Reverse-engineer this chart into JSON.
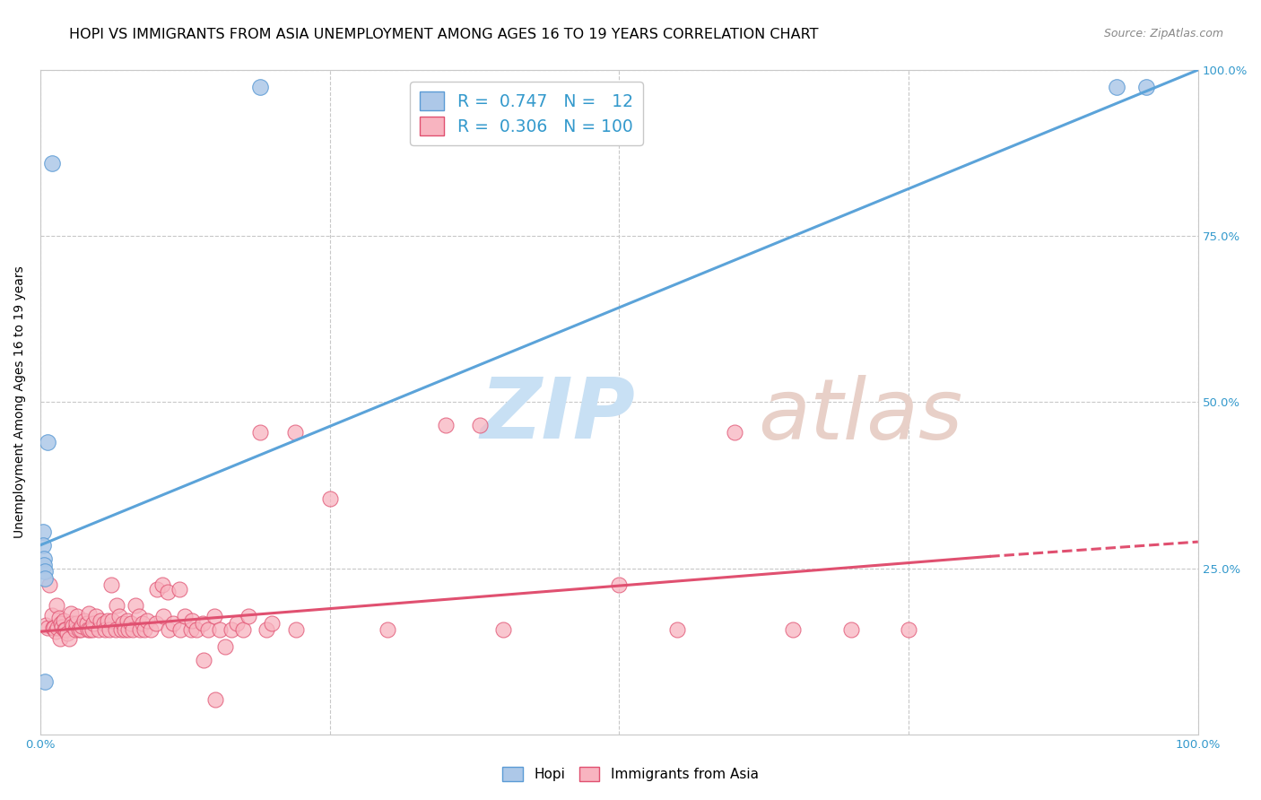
{
  "title": "HOPI VS IMMIGRANTS FROM ASIA UNEMPLOYMENT AMONG AGES 16 TO 19 YEARS CORRELATION CHART",
  "source": "Source: ZipAtlas.com",
  "ylabel": "Unemployment Among Ages 16 to 19 years",
  "xlim": [
    0,
    1
  ],
  "ylim": [
    0,
    1
  ],
  "hopi_color": "#adc8e8",
  "hopi_edge_color": "#5b9bd5",
  "asia_color": "#f8b4c0",
  "asia_edge_color": "#e05070",
  "blue_line_color": "#5ba3d9",
  "pink_line_color": "#e05070",
  "watermark_zip_color": "#c8e0f4",
  "watermark_atlas_color": "#e8d0c8",
  "legend_R_hopi": "0.747",
  "legend_N_hopi": "12",
  "legend_R_asia": "0.306",
  "legend_N_asia": "100",
  "hopi_points": [
    [
      0.002,
      0.305
    ],
    [
      0.002,
      0.285
    ],
    [
      0.003,
      0.265
    ],
    [
      0.003,
      0.255
    ],
    [
      0.004,
      0.245
    ],
    [
      0.004,
      0.235
    ],
    [
      0.004,
      0.08
    ],
    [
      0.006,
      0.44
    ],
    [
      0.01,
      0.86
    ],
    [
      0.19,
      0.975
    ],
    [
      0.93,
      0.975
    ],
    [
      0.955,
      0.975
    ]
  ],
  "asia_points": [
    [
      0.005,
      0.165
    ],
    [
      0.006,
      0.16
    ],
    [
      0.008,
      0.225
    ],
    [
      0.01,
      0.18
    ],
    [
      0.011,
      0.16
    ],
    [
      0.012,
      0.16
    ],
    [
      0.013,
      0.155
    ],
    [
      0.014,
      0.195
    ],
    [
      0.015,
      0.16
    ],
    [
      0.016,
      0.175
    ],
    [
      0.017,
      0.145
    ],
    [
      0.018,
      0.168
    ],
    [
      0.019,
      0.162
    ],
    [
      0.02,
      0.172
    ],
    [
      0.021,
      0.158
    ],
    [
      0.022,
      0.158
    ],
    [
      0.023,
      0.152
    ],
    [
      0.025,
      0.145
    ],
    [
      0.026,
      0.182
    ],
    [
      0.027,
      0.168
    ],
    [
      0.028,
      0.163
    ],
    [
      0.03,
      0.158
    ],
    [
      0.031,
      0.168
    ],
    [
      0.032,
      0.178
    ],
    [
      0.033,
      0.158
    ],
    [
      0.035,
      0.158
    ],
    [
      0.036,
      0.163
    ],
    [
      0.038,
      0.172
    ],
    [
      0.04,
      0.168
    ],
    [
      0.041,
      0.158
    ],
    [
      0.042,
      0.182
    ],
    [
      0.043,
      0.158
    ],
    [
      0.045,
      0.158
    ],
    [
      0.046,
      0.168
    ],
    [
      0.048,
      0.178
    ],
    [
      0.05,
      0.158
    ],
    [
      0.052,
      0.172
    ],
    [
      0.055,
      0.168
    ],
    [
      0.056,
      0.158
    ],
    [
      0.058,
      0.172
    ],
    [
      0.06,
      0.158
    ],
    [
      0.061,
      0.225
    ],
    [
      0.062,
      0.172
    ],
    [
      0.065,
      0.158
    ],
    [
      0.066,
      0.195
    ],
    [
      0.068,
      0.178
    ],
    [
      0.07,
      0.158
    ],
    [
      0.071,
      0.168
    ],
    [
      0.073,
      0.158
    ],
    [
      0.075,
      0.172
    ],
    [
      0.076,
      0.158
    ],
    [
      0.078,
      0.168
    ],
    [
      0.08,
      0.158
    ],
    [
      0.082,
      0.195
    ],
    [
      0.085,
      0.178
    ],
    [
      0.086,
      0.158
    ],
    [
      0.088,
      0.168
    ],
    [
      0.09,
      0.158
    ],
    [
      0.092,
      0.172
    ],
    [
      0.095,
      0.158
    ],
    [
      0.1,
      0.168
    ],
    [
      0.101,
      0.218
    ],
    [
      0.105,
      0.225
    ],
    [
      0.106,
      0.178
    ],
    [
      0.11,
      0.215
    ],
    [
      0.111,
      0.158
    ],
    [
      0.115,
      0.168
    ],
    [
      0.12,
      0.218
    ],
    [
      0.121,
      0.158
    ],
    [
      0.125,
      0.178
    ],
    [
      0.13,
      0.158
    ],
    [
      0.131,
      0.172
    ],
    [
      0.135,
      0.158
    ],
    [
      0.14,
      0.168
    ],
    [
      0.141,
      0.112
    ],
    [
      0.145,
      0.158
    ],
    [
      0.15,
      0.178
    ],
    [
      0.151,
      0.052
    ],
    [
      0.155,
      0.158
    ],
    [
      0.16,
      0.132
    ],
    [
      0.165,
      0.158
    ],
    [
      0.17,
      0.168
    ],
    [
      0.175,
      0.158
    ],
    [
      0.18,
      0.178
    ],
    [
      0.19,
      0.455
    ],
    [
      0.195,
      0.158
    ],
    [
      0.2,
      0.168
    ],
    [
      0.22,
      0.455
    ],
    [
      0.221,
      0.158
    ],
    [
      0.25,
      0.355
    ],
    [
      0.3,
      0.158
    ],
    [
      0.35,
      0.465
    ],
    [
      0.38,
      0.465
    ],
    [
      0.4,
      0.158
    ],
    [
      0.5,
      0.225
    ],
    [
      0.55,
      0.158
    ],
    [
      0.6,
      0.455
    ],
    [
      0.65,
      0.158
    ],
    [
      0.7,
      0.158
    ],
    [
      0.75,
      0.158
    ]
  ],
  "hopi_line": {
    "x0": 0.0,
    "y0": 0.285,
    "x1": 1.0,
    "y1": 1.0
  },
  "asia_line_solid": {
    "x0": 0.0,
    "y0": 0.155,
    "x1": 0.82,
    "y1": 0.268
  },
  "asia_line_dashed": {
    "x0": 0.82,
    "y0": 0.268,
    "x1": 1.0,
    "y1": 0.29
  },
  "background_color": "#ffffff",
  "grid_color": "#c8c8c8",
  "title_fontsize": 11.5,
  "label_fontsize": 10,
  "tick_fontsize": 9.5,
  "source_fontsize": 9,
  "legend_color": "#3399cc"
}
